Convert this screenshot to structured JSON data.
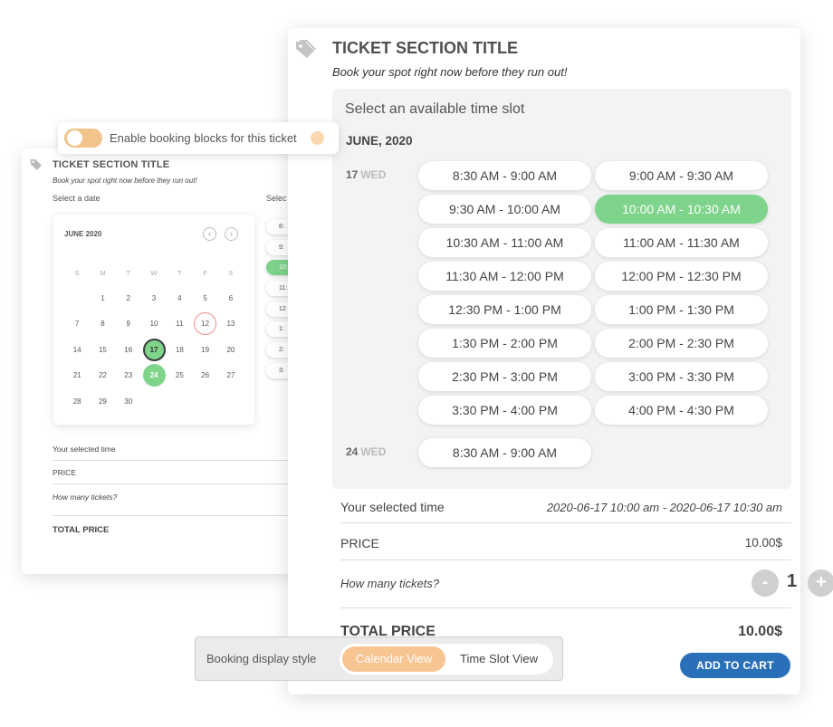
{
  "back_card": {
    "title": "TICKET SECTION TITLE",
    "subtitle": "Book your spot right now before they run out!",
    "select_date_label": "Select a date",
    "select_slot_label": "Selec",
    "calendar": {
      "month": "JUNE 2020",
      "prev_glyph": "‹",
      "next_glyph": "›",
      "weekdays": [
        "S",
        "M",
        "T",
        "W",
        "T",
        "F",
        "S"
      ],
      "weeks": [
        [
          "",
          "1",
          "2",
          "3",
          "4",
          "5",
          "6"
        ],
        [
          "7",
          "8",
          "9",
          "10",
          "11",
          "12",
          "13"
        ],
        [
          "14",
          "15",
          "16",
          "17",
          "18",
          "19",
          "20"
        ],
        [
          "21",
          "22",
          "23",
          "24",
          "25",
          "26",
          "27"
        ],
        [
          "28",
          "29",
          "30",
          "",
          "",
          "",
          ""
        ]
      ],
      "today": "12",
      "selected": "17",
      "available": [
        "24"
      ]
    },
    "mini_slots": [
      "8:",
      "9:",
      "10:",
      "11:",
      "12",
      "1:",
      "2:",
      "3:"
    ],
    "mini_active_index": 2,
    "rows": {
      "selected_time": "Your selected time",
      "price": "PRICE",
      "how_many": "How many tickets?",
      "total": "TOTAL PRICE"
    }
  },
  "toggle": {
    "label": "Enable booking blocks for this ticket",
    "on": true,
    "color": "#f0c48a"
  },
  "front_card": {
    "title": "TICKET SECTION TITLE",
    "subtitle": "Book your spot right now before they run out!",
    "slot_heading": "Select an available time slot",
    "month": "JUNE, 2020",
    "days": [
      {
        "day": "17",
        "weekday": "WED",
        "slots": [
          "8:30 AM - 9:00 AM",
          "9:00 AM - 9:30 AM",
          "9:30 AM - 10:00 AM",
          "10:00 AM - 10:30 AM",
          "10:30 AM - 11:00 AM",
          "11:00 AM - 11:30 AM",
          "11:30 AM - 12:00 PM",
          "12:00 PM - 12:30 PM",
          "12:30 PM - 1:00 PM",
          "1:00 PM - 1:30 PM",
          "1:30 PM - 2:00 PM",
          "2:00 PM - 2:30 PM",
          "2:30 PM - 3:00 PM",
          "3:00 PM - 3:30 PM",
          "3:30 PM - 4:00 PM",
          "4:00 PM - 4:30 PM"
        ],
        "selected": "10:00 AM - 10:30 AM"
      },
      {
        "day": "24",
        "weekday": "WED",
        "slots": [
          "8:30 AM - 9:00 AM"
        ]
      }
    ],
    "selected_time_label": "Your selected time",
    "selected_time_value": "2020-06-17 10:00 am - 2020-06-17 10:30 am",
    "price_label": "PRICE",
    "price_value": "10.00$",
    "how_many_label": "How many tickets?",
    "quantity": "1",
    "minus_glyph": "-",
    "plus_glyph": "+",
    "total_label": "TOTAL PRICE",
    "total_value": "10.00$",
    "add_to_cart": "ADD TO CART"
  },
  "display_style": {
    "label": "Booking display style",
    "options": [
      "Calendar View",
      "Time Slot View"
    ],
    "active": "Calendar View"
  },
  "colors": {
    "accent_green": "#7dd48a",
    "accent_orange": "#f6c592",
    "cart_blue": "#2a70b9",
    "today_ring": "#ef8d84"
  }
}
